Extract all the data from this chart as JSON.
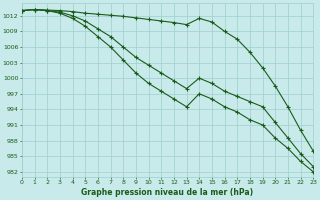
{
  "title": "Graphe pression niveau de la mer (hPa)",
  "background_color": "#c8eaea",
  "grid_color": "#9ecece",
  "line_color": "#1a5c1a",
  "ylim": [
    981,
    1014.5
  ],
  "xlim": [
    0,
    23
  ],
  "yticks": [
    982,
    985,
    988,
    991,
    994,
    997,
    1000,
    1003,
    1006,
    1009,
    1012
  ],
  "xticks": [
    0,
    1,
    2,
    3,
    4,
    5,
    6,
    7,
    8,
    9,
    10,
    11,
    12,
    13,
    14,
    15,
    16,
    17,
    18,
    19,
    20,
    21,
    22,
    23
  ],
  "line1": [
    1013.0,
    1013.2,
    1013.1,
    1013.0,
    1012.8,
    1012.5,
    1012.3,
    1012.1,
    1011.9,
    1011.6,
    1011.3,
    1011.0,
    1010.7,
    1010.3,
    1011.5,
    1010.8,
    1009.0,
    1007.5,
    1005.0,
    1002.0,
    998.5,
    994.5,
    990.0,
    986.0
  ],
  "line2": [
    1013.0,
    1013.2,
    1013.0,
    1012.7,
    1012.0,
    1011.0,
    1009.5,
    1008.0,
    1006.0,
    1004.0,
    1002.5,
    1001.0,
    999.5,
    998.0,
    1000.0,
    999.0,
    997.5,
    996.5,
    995.5,
    994.5,
    991.5,
    988.5,
    985.5,
    983.0
  ],
  "line3": [
    1013.0,
    1013.2,
    1013.0,
    1012.5,
    1011.5,
    1010.0,
    1008.0,
    1006.0,
    1003.5,
    1001.0,
    999.0,
    997.5,
    996.0,
    994.5,
    997.0,
    996.0,
    994.5,
    993.5,
    992.0,
    991.0,
    988.5,
    986.5,
    984.0,
    982.0
  ]
}
